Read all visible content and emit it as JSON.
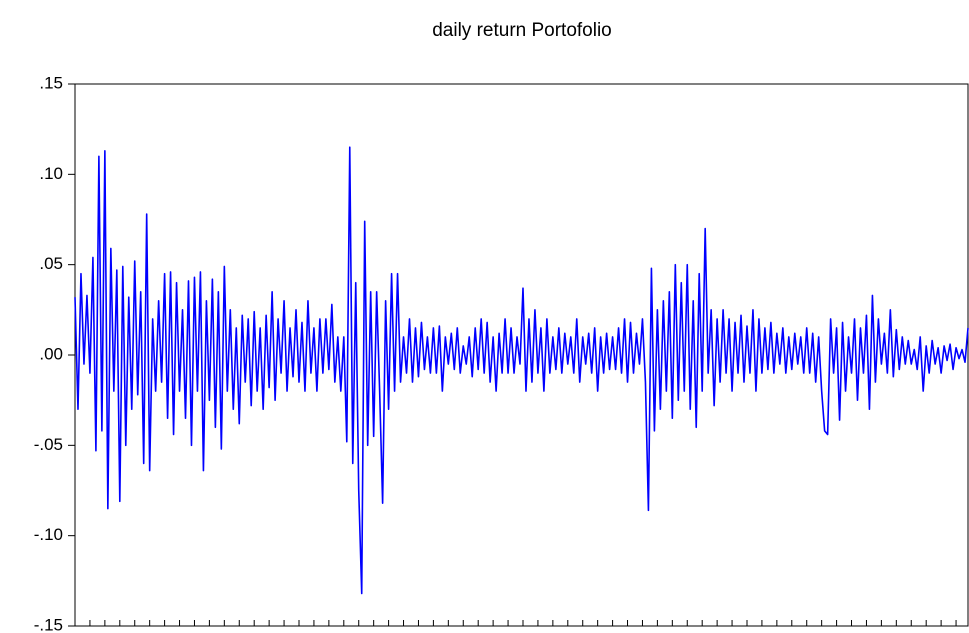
{
  "chart_data": {
    "type": "line",
    "title": "daily return Portofolio",
    "color": "#0000ff",
    "ylim": [
      -0.15,
      0.15
    ],
    "yticks": [
      {
        "value": 0.15,
        "label": ".15"
      },
      {
        "value": 0.1,
        "label": ".10"
      },
      {
        "value": 0.05,
        "label": ".05"
      },
      {
        "value": 0,
        "label": ".00"
      },
      {
        "value": -0.05,
        "label": "-.05"
      },
      {
        "value": -0.1,
        "label": "-.10"
      },
      {
        "value": -0.15,
        "label": "-.15"
      }
    ],
    "values": [
      0.032,
      -0.03,
      0.045,
      -0.005,
      0.033,
      -0.01,
      0.054,
      -0.053,
      0.11,
      -0.042,
      0.113,
      -0.085,
      0.059,
      -0.02,
      0.047,
      -0.081,
      0.049,
      -0.05,
      0.032,
      -0.03,
      0.052,
      -0.022,
      0.035,
      -0.06,
      0.078,
      -0.064,
      0.02,
      -0.02,
      0.03,
      -0.015,
      0.045,
      -0.035,
      0.046,
      -0.044,
      0.04,
      -0.02,
      0.025,
      -0.035,
      0.041,
      -0.05,
      0.043,
      -0.02,
      0.046,
      -0.064,
      0.03,
      -0.025,
      0.042,
      -0.04,
      0.035,
      -0.052,
      0.049,
      -0.02,
      0.025,
      -0.03,
      0.015,
      -0.038,
      0.022,
      -0.015,
      0.02,
      -0.028,
      0.024,
      -0.02,
      0.015,
      -0.03,
      0.022,
      -0.018,
      0.035,
      -0.025,
      0.02,
      -0.01,
      0.03,
      -0.02,
      0.015,
      -0.012,
      0.025,
      -0.015,
      0.018,
      -0.02,
      0.03,
      -0.01,
      0.015,
      -0.02,
      0.02,
      -0.01,
      0.02,
      -0.008,
      0.028,
      -0.015,
      0.01,
      -0.02,
      0.01,
      -0.048,
      0.115,
      -0.06,
      0.04,
      -0.075,
      -0.132,
      0.074,
      -0.05,
      0.035,
      -0.045,
      0.035,
      -0.02,
      -0.082,
      0.03,
      -0.03,
      0.045,
      -0.02,
      0.045,
      -0.015,
      0.01,
      -0.01,
      0.02,
      -0.015,
      0.015,
      -0.012,
      0.018,
      -0.008,
      0.01,
      -0.01,
      0.015,
      -0.01,
      0.016,
      -0.02,
      0.01,
      -0.005,
      0.012,
      -0.008,
      0.015,
      -0.01,
      0.005,
      -0.005,
      0.01,
      -0.012,
      0.015,
      -0.008,
      0.02,
      -0.01,
      0.018,
      -0.015,
      0.01,
      -0.02,
      0.012,
      -0.01,
      0.02,
      -0.01,
      0.015,
      -0.01,
      0.01,
      -0.005,
      0.037,
      -0.02,
      0.02,
      -0.015,
      0.025,
      -0.01,
      0.015,
      -0.02,
      0.02,
      -0.01,
      0.01,
      -0.008,
      0.015,
      -0.01,
      0.012,
      -0.005,
      0.01,
      -0.01,
      0.02,
      -0.015,
      0.01,
      -0.005,
      0.012,
      -0.01,
      0.015,
      -0.02,
      0.01,
      -0.01,
      0.012,
      -0.008,
      0.01,
      -0.008,
      0.015,
      -0.01,
      0.02,
      -0.015,
      0.018,
      -0.01,
      0.012,
      -0.005,
      0.02,
      -0.015,
      -0.086,
      0.048,
      -0.042,
      0.025,
      -0.03,
      0.03,
      -0.02,
      0.035,
      -0.035,
      0.05,
      -0.025,
      0.04,
      -0.02,
      0.05,
      -0.03,
      0.03,
      -0.04,
      0.045,
      -0.02,
      0.07,
      -0.01,
      0.025,
      -0.028,
      0.02,
      -0.015,
      0.025,
      -0.01,
      0.02,
      -0.02,
      0.018,
      -0.01,
      0.022,
      -0.015,
      0.016,
      -0.01,
      0.025,
      -0.02,
      0.02,
      -0.01,
      0.015,
      -0.008,
      0.018,
      -0.01,
      0.012,
      -0.005,
      0.015,
      -0.01,
      0.01,
      -0.008,
      0.012,
      -0.005,
      0.01,
      -0.01,
      0.015,
      -0.01,
      0.012,
      -0.015,
      0.01,
      -0.02,
      -0.042,
      -0.044,
      0.02,
      -0.01,
      0.015,
      -0.036,
      0.018,
      -0.02,
      0.01,
      -0.01,
      0.02,
      -0.025,
      0.015,
      -0.01,
      0.022,
      -0.03,
      0.033,
      -0.015,
      0.02,
      -0.005,
      0.012,
      -0.01,
      0.025,
      -0.012,
      0.014,
      -0.008,
      0.01,
      -0.005,
      0.008,
      -0.005,
      0.003,
      -0.008,
      0.01,
      -0.02,
      0.005,
      -0.01,
      0.008,
      -0.005,
      0.004,
      -0.01,
      0.005,
      -0.003,
      0.006,
      -0.008,
      0.004,
      -0.002,
      0.003,
      -0.004,
      0.015
    ]
  }
}
